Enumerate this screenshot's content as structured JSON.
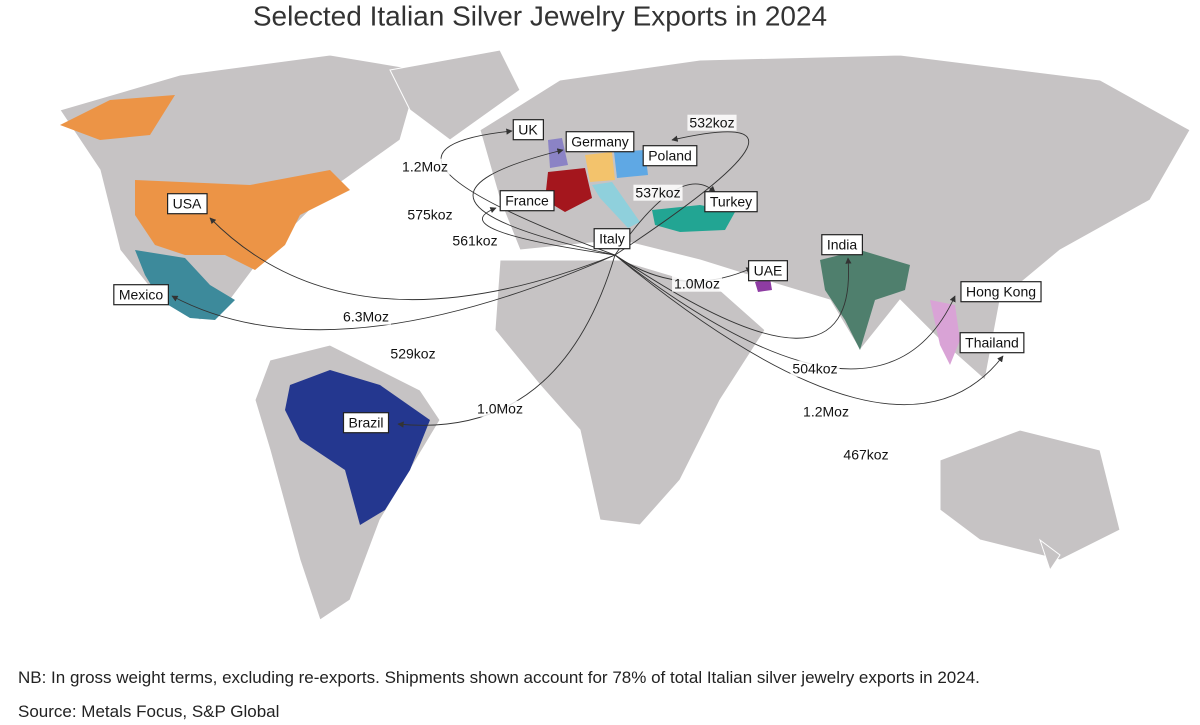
{
  "title": "Selected Italian Silver Jewelry Exports in 2024",
  "origin": "Italy",
  "flows": [
    {
      "destination": "UK",
      "amount": "1.2Moz"
    },
    {
      "destination": "Germany",
      "amount": "575koz"
    },
    {
      "destination": "France",
      "amount": "561koz"
    },
    {
      "destination": "Poland",
      "amount": "532koz"
    },
    {
      "destination": "Turkey",
      "amount": "537koz"
    },
    {
      "destination": "UAE",
      "amount": "1.0Moz"
    },
    {
      "destination": "India",
      "amount": "504koz"
    },
    {
      "destination": "Hong Kong",
      "amount": "1.2Moz"
    },
    {
      "destination": "Thailand",
      "amount": "467koz"
    },
    {
      "destination": "USA",
      "amount": "6.3Moz"
    },
    {
      "destination": "Mexico",
      "amount": "529koz"
    },
    {
      "destination": "Brazil",
      "amount": "1.0Moz"
    }
  ],
  "note": "NB: In gross weight terms, excluding re-exports. Shipments shown account for 78% of total Italian silver jewelry exports in 2024.",
  "source": "Source: Metals Focus, S&P Global"
}
